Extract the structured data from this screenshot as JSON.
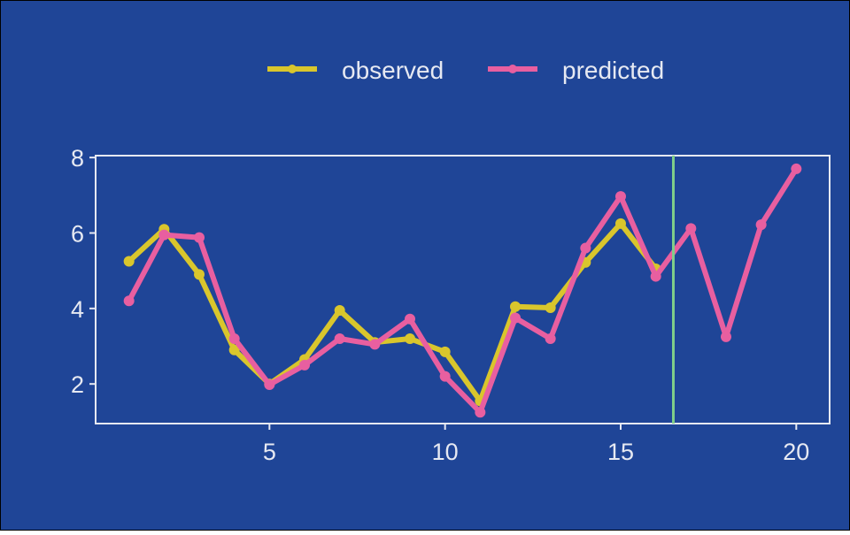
{
  "colors": {
    "background": "#1f4597",
    "frame": "#e6e9f2",
    "text": "#e6e9f2",
    "observed": "#d9c62c",
    "predicted": "#e85fa0",
    "vline": "#7fcf8a"
  },
  "chart_data": {
    "type": "line",
    "title": "",
    "xlabel": "",
    "ylabel": "",
    "xlim": [
      0.05,
      20.95
    ],
    "ylim": [
      0.95,
      8.05
    ],
    "x_ticks": [
      5,
      10,
      15,
      20
    ],
    "y_ticks": [
      2,
      4,
      6,
      8
    ],
    "grid": false,
    "legend_position": "top",
    "vertical_line_x": 16.5,
    "series": [
      {
        "name": "observed",
        "color": "#d9c62c",
        "x": [
          1,
          2,
          3,
          4,
          5,
          6,
          7,
          8,
          9,
          10,
          11,
          12,
          13,
          14,
          15,
          16
        ],
        "y": [
          5.25,
          6.1,
          4.9,
          2.9,
          2.0,
          2.65,
          3.95,
          3.1,
          3.2,
          2.85,
          1.55,
          4.05,
          4.02,
          5.22,
          6.25,
          5.05
        ]
      },
      {
        "name": "predicted",
        "color": "#e85fa0",
        "x": [
          1,
          2,
          3,
          4,
          5,
          6,
          7,
          8,
          9,
          10,
          11,
          12,
          13,
          14,
          15,
          16,
          17,
          18,
          19,
          20
        ],
        "y": [
          4.2,
          5.95,
          5.88,
          3.2,
          1.98,
          2.5,
          3.2,
          3.05,
          3.72,
          2.2,
          1.25,
          3.75,
          3.2,
          5.6,
          6.97,
          4.85,
          6.12,
          3.25,
          6.22,
          7.7
        ]
      }
    ]
  }
}
